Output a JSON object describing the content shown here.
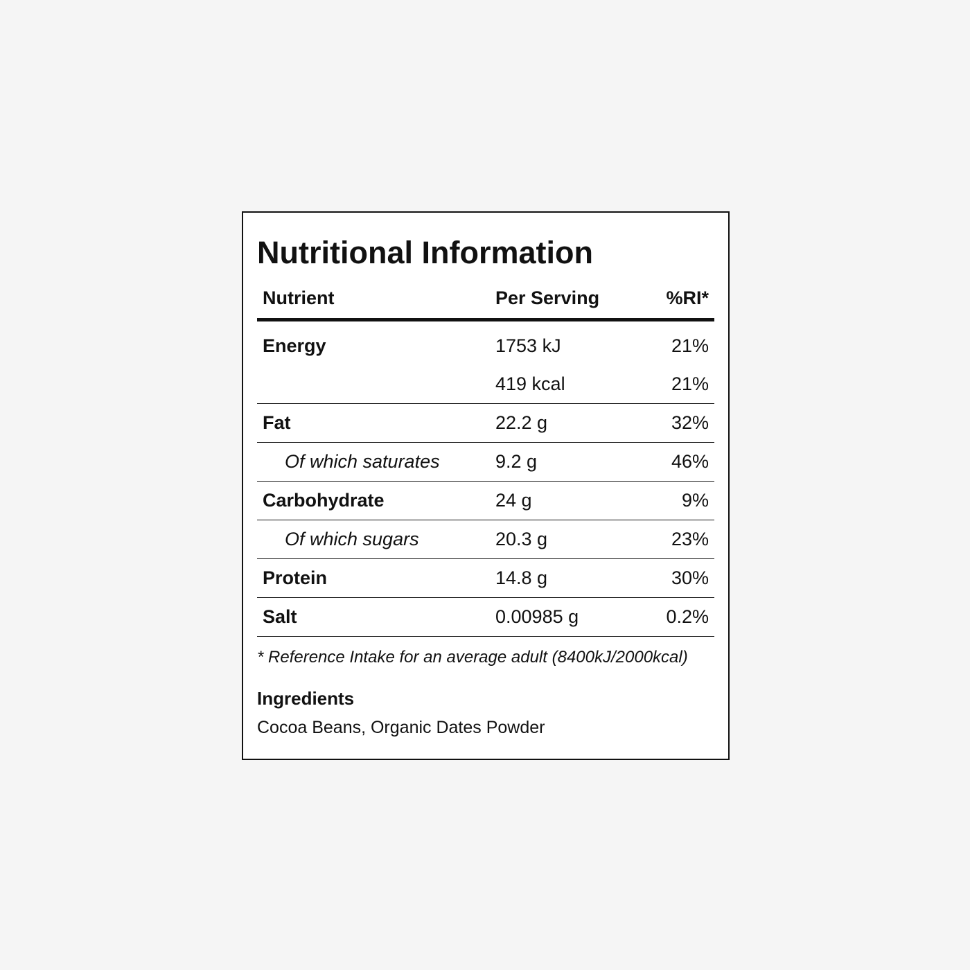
{
  "title": "Nutritional Information",
  "table": {
    "header": [
      "Nutrient",
      "Per Serving",
      "%RI*"
    ],
    "rows": [
      {
        "name": "Energy",
        "amounts": [
          {
            "per_serving": "1753 kJ",
            "ri": "21%"
          },
          {
            "per_serving": "419 kcal",
            "ri": "21%"
          }
        ]
      },
      {
        "name": "Fat",
        "amounts": [
          {
            "per_serving": "22.2 g",
            "ri": "32%"
          }
        ]
      },
      {
        "name": "Of which saturates",
        "sub": true,
        "amounts": [
          {
            "per_serving": "9.2 g",
            "ri": "46%"
          }
        ]
      },
      {
        "name": "Carbohydrate",
        "amounts": [
          {
            "per_serving": "24 g",
            "ri": "9%"
          }
        ]
      },
      {
        "name": "Of which sugars",
        "sub": true,
        "amounts": [
          {
            "per_serving": "20.3 g",
            "ri": "23%"
          }
        ]
      },
      {
        "name": "Protein",
        "amounts": [
          {
            "per_serving": "14.8 g",
            "ri": "30%"
          }
        ]
      },
      {
        "name": "Salt",
        "amounts": [
          {
            "per_serving": "0.00985 g",
            "ri": "0.2%"
          }
        ]
      }
    ]
  },
  "footnote": "* Reference Intake for an average adult (8400kJ/2000kcal)",
  "ingredients": {
    "heading": "Ingredients",
    "text": "Cocoa Beans, Organic Dates Powder"
  }
}
